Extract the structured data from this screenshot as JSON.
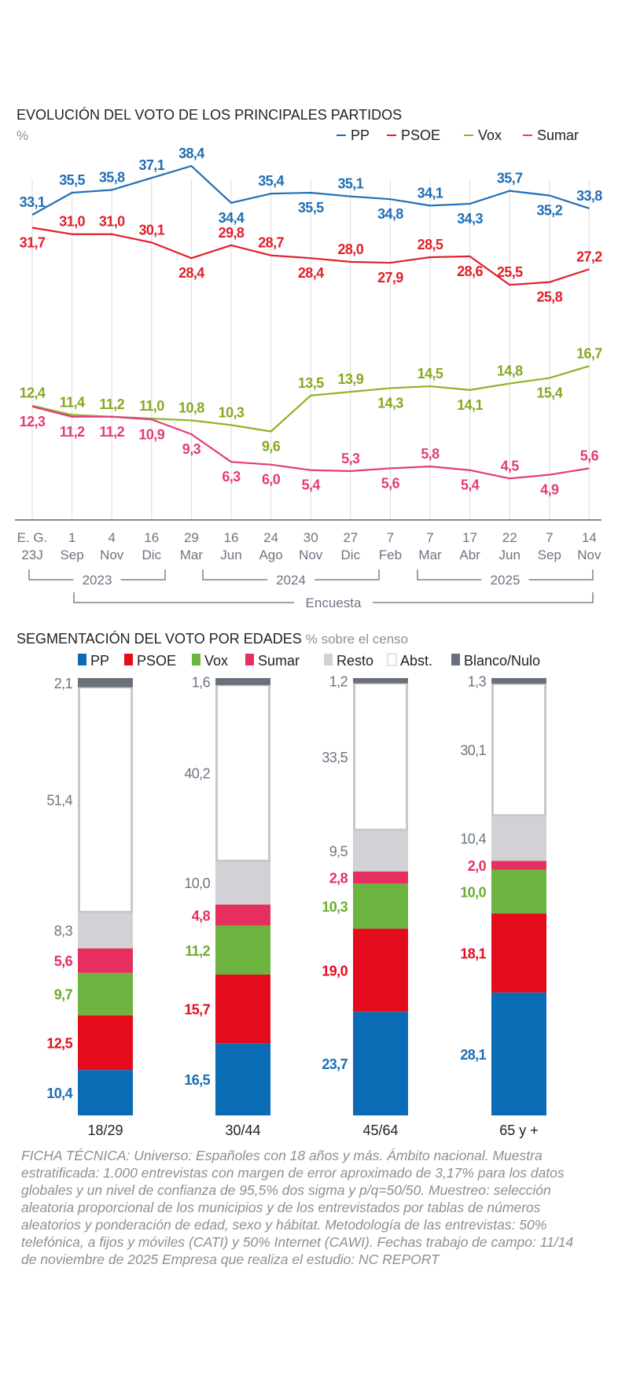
{
  "chart_data": [
    {
      "type": "line",
      "title": "EVOLUCIÓN DEL VOTO DE LOS PRINCIPALES PARTIDOS",
      "ylabel": "%",
      "legend_position": "top-right",
      "grid": "vertical",
      "ylim": [
        0,
        38.4
      ],
      "categories": [
        [
          "E. G.",
          "23J"
        ],
        [
          "1",
          "Sep"
        ],
        [
          "4",
          "Nov"
        ],
        [
          "16",
          "Dic"
        ],
        [
          "29",
          "Mar"
        ],
        [
          "16",
          "Jun"
        ],
        [
          "24",
          "Ago"
        ],
        [
          "30",
          "Nov"
        ],
        [
          "27",
          "Dic"
        ],
        [
          "7",
          "Feb"
        ],
        [
          "7",
          "Mar"
        ],
        [
          "17",
          "Abr"
        ],
        [
          "22",
          "Jun"
        ],
        [
          "7",
          "Sep"
        ],
        [
          "14",
          "Nov"
        ]
      ],
      "groups": [
        {
          "label": "2023"
        },
        {
          "label": "2024"
        },
        {
          "label": "2025"
        },
        {
          "label": "Encuesta"
        }
      ],
      "series": [
        {
          "name": "PP",
          "color": "#1f6fb5",
          "values": [
            33.1,
            35.5,
            35.8,
            37.1,
            38.4,
            34.4,
            35.4,
            35.5,
            35.1,
            34.8,
            34.1,
            34.3,
            35.7,
            35.2,
            33.8
          ],
          "labels": [
            "33,1",
            "35,5",
            "35,8",
            "37,1",
            "38,4",
            "34,4",
            "35,4",
            "35,5",
            "35,1",
            "34,8",
            "34,1",
            "34,3",
            "35,7",
            "35,2",
            "33,8"
          ]
        },
        {
          "name": "PSOE",
          "color": "#e0202a",
          "values": [
            31.7,
            31.0,
            31.0,
            30.1,
            28.4,
            29.8,
            28.7,
            28.4,
            28.0,
            27.9,
            28.5,
            28.6,
            25.5,
            25.8,
            27.2
          ],
          "labels": [
            "31,7",
            "31,0",
            "31,0",
            "30,1",
            "28,4",
            "29,8",
            "28,7",
            "28,4",
            "28,0",
            "27,9",
            "28,5",
            "28,6",
            "25,5",
            "25,8",
            "27,2"
          ]
        },
        {
          "name": "Vox",
          "color": "#8fb324",
          "values": [
            12.4,
            11.4,
            11.2,
            11.0,
            10.8,
            10.3,
            9.6,
            13.5,
            13.9,
            14.3,
            14.5,
            14.1,
            14.8,
            15.4,
            16.7
          ],
          "labels": [
            "12,4",
            "11,4",
            "11,2",
            "11,0",
            "10,8",
            "10,3",
            "9,6",
            "13,5",
            "13,9",
            "14,3",
            "14,5",
            "14,1",
            "14,8",
            "15,4",
            "16,7"
          ]
        },
        {
          "name": "Sumar",
          "color": "#e23d78",
          "values": [
            12.3,
            11.2,
            11.2,
            10.9,
            9.3,
            6.3,
            6.0,
            5.4,
            5.3,
            5.6,
            5.8,
            5.4,
            4.5,
            4.9,
            5.6
          ],
          "labels": [
            "12,3",
            "11,2",
            "11,2",
            "10,9",
            "9,3",
            "6,3",
            "6,0",
            "5,4",
            "5,3",
            "5,6",
            "5,8",
            "5,4",
            "4,5",
            "4,9",
            "5,6"
          ]
        }
      ]
    },
    {
      "type": "bar",
      "stacked": true,
      "title": "SEGMENTACIÓN DEL VOTO POR EDADES",
      "subtitle": "% sobre el censo",
      "legend_position": "top",
      "categories": [
        "18/29",
        "30/44",
        "45/64",
        "65 y +"
      ],
      "series": [
        {
          "name": "PP",
          "color": "#0a6cb4",
          "label_color": "#1a6db3",
          "values": [
            10.4,
            16.5,
            23.7,
            28.1
          ],
          "labels": [
            "10,4",
            "16,5",
            "23,7",
            "28,1"
          ]
        },
        {
          "name": "PSOE",
          "color": "#e30b1c",
          "label_color": "#e30b1c",
          "values": [
            12.5,
            15.7,
            19.0,
            18.1
          ],
          "labels": [
            "12,5",
            "15,7",
            "19,0",
            "18,1"
          ]
        },
        {
          "name": "Vox",
          "color": "#6db33f",
          "label_color": "#6aad2f",
          "values": [
            9.7,
            11.2,
            10.3,
            10.0
          ],
          "labels": [
            "9,7",
            "11,2",
            "10,3",
            "10,0"
          ]
        },
        {
          "name": "Sumar",
          "color": "#e5305f",
          "label_color": "#e5305f",
          "values": [
            5.6,
            4.8,
            2.8,
            2.0
          ],
          "labels": [
            "5,6",
            "4,8",
            "2,8",
            "2,0"
          ]
        },
        {
          "name": "Resto",
          "color": "#d2d2d6",
          "label_color": "#6c7580",
          "values": [
            8.3,
            10.0,
            9.5,
            10.4
          ],
          "labels": [
            "8,3",
            "10,0",
            "9,5",
            "10,4"
          ]
        },
        {
          "name": "Abst.",
          "color": "#ffffff",
          "label_color": "#6c7580",
          "values": [
            51.4,
            40.2,
            33.5,
            30.1
          ],
          "labels": [
            "51,4",
            "40,2",
            "33,5",
            "30,1"
          ]
        },
        {
          "name": "Blanco/Nulo",
          "color": "#6b717a",
          "label_color": "#6c7580",
          "values": [
            2.1,
            1.6,
            1.2,
            1.3
          ],
          "labels": [
            "2,1",
            "1,6",
            "1,2",
            "1,3"
          ]
        }
      ]
    }
  ],
  "footer": {
    "ficha": "FICHA TÉCNICA: Universo: Españoles con 18 años y más. Ámbito nacional. Muestra estratificada: 1.000 entrevistas con margen de error aproximado de 3,17% para los datos globales y un nivel de confianza de 95,5% dos sigma y p/q=50/50. Muestreo: selección aleatoria proporcional de los municipios y de los entrevistados por tablas de números aleatorios y ponderación de edad, sexo y hábitat. Metodología de las entrevistas: 50% telefónica, a fijos y móviles (CATI) y 50% Internet (CAWI). Fechas trabajo de campo: 11/14 de noviembre de 2025 Empresa que realiza el estudio: NC REPORT"
  }
}
